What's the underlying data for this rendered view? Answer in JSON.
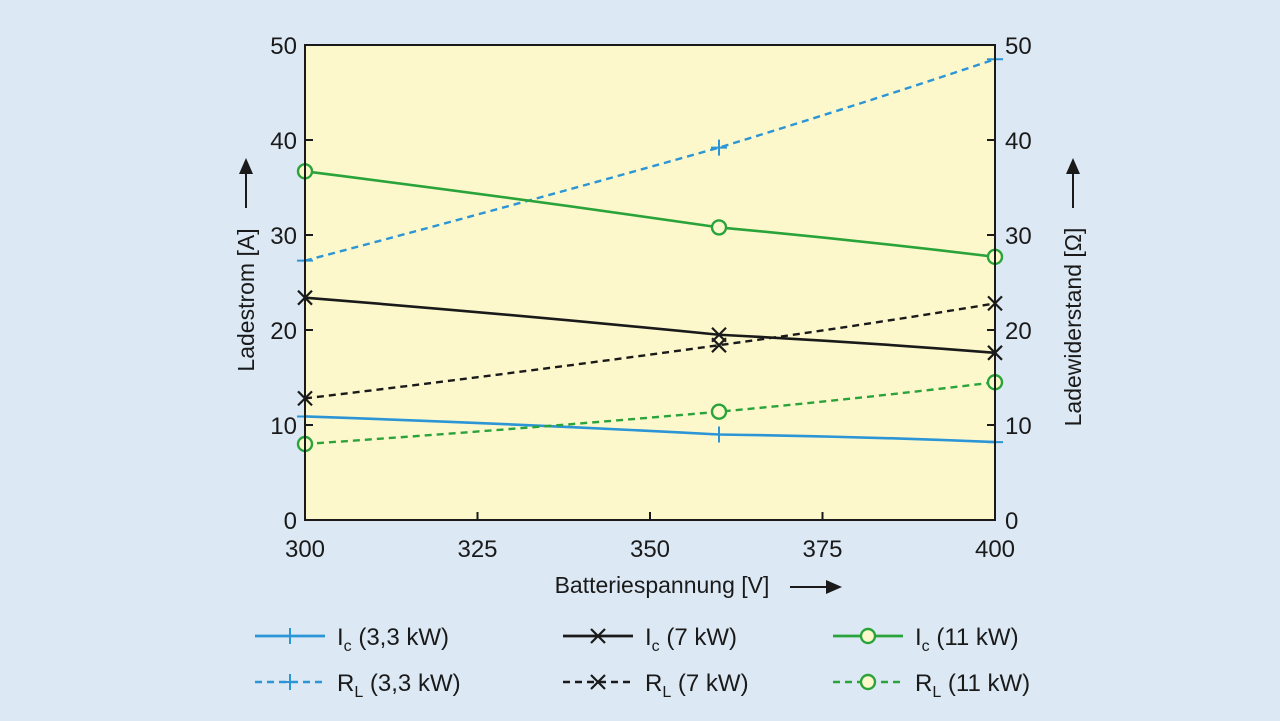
{
  "chart_data": {
    "type": "line",
    "x": [
      300,
      360,
      400
    ],
    "xlabel": "Batteriespannung [V]",
    "ylabel_left": "Ladestrom [A]",
    "ylabel_right": "Ladewiderstand [Ω]",
    "xlim": [
      300,
      400
    ],
    "ylim": [
      0,
      50
    ],
    "xticks": [
      "300",
      "325",
      "350",
      "375",
      "400"
    ],
    "yticks": [
      "0",
      "10",
      "20",
      "30",
      "40",
      "50"
    ],
    "grid": false,
    "colors": {
      "plot_bg": "#fdf8cc",
      "page_bg": "#dce9f5",
      "blue": "#2b95d6",
      "black": "#1a1a1a",
      "green": "#29a33a"
    },
    "series": [
      {
        "name": "Ic (3,3 kW)",
        "main": "I",
        "sub": "c",
        "rest": " (3,3 kW)",
        "axis": "left",
        "color": "#2b95d6",
        "style": "solid",
        "marker": "plus",
        "values": [
          10.9,
          9.0,
          8.2
        ]
      },
      {
        "name": "RL (3,3 kW)",
        "main": "R",
        "sub": "L",
        "rest": " (3,3 kW)",
        "axis": "right",
        "color": "#2b95d6",
        "style": "dashed",
        "marker": "plus",
        "values": [
          27.3,
          39.2,
          48.5
        ]
      },
      {
        "name": "Ic (7 kW)",
        "main": "I",
        "sub": "c",
        "rest": " (7 kW)",
        "axis": "left",
        "color": "#1a1a1a",
        "style": "solid",
        "marker": "x",
        "values": [
          23.4,
          19.5,
          17.6
        ]
      },
      {
        "name": "RL (7 kW)",
        "main": "R",
        "sub": "L",
        "rest": " (7 kW)",
        "axis": "right",
        "color": "#1a1a1a",
        "style": "dashed",
        "marker": "x",
        "values": [
          12.8,
          18.4,
          22.8
        ]
      },
      {
        "name": "Ic (11 kW)",
        "main": "I",
        "sub": "c",
        "rest": " (11 kW)",
        "axis": "left",
        "color": "#29a33a",
        "style": "solid",
        "marker": "circle",
        "values": [
          36.7,
          30.8,
          27.7
        ]
      },
      {
        "name": "RL (11 kW)",
        "main": "R",
        "sub": "L",
        "rest": " (11 kW)",
        "axis": "right",
        "color": "#29a33a",
        "style": "dashed",
        "marker": "circle",
        "values": [
          8.0,
          11.4,
          14.5
        ]
      }
    ],
    "legend_order": [
      0,
      2,
      4,
      1,
      3,
      5
    ]
  }
}
